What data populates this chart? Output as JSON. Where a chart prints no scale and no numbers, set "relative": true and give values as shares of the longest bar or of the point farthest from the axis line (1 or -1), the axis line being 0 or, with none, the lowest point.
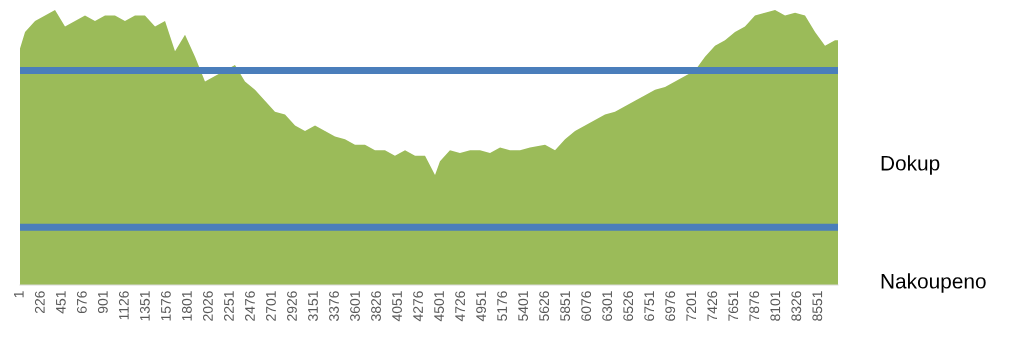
{
  "chart_data": {
    "type": "area",
    "relative": true,
    "color": "#9bbb59",
    "x": [
      1,
      55,
      162,
      269,
      376,
      483,
      590,
      697,
      804,
      911,
      1018,
      1125,
      1232,
      1339,
      1447,
      1554,
      1661,
      1768,
      1875,
      1982,
      2089,
      2196,
      2303,
      2410,
      2517,
      2624,
      2731,
      2839,
      2946,
      3053,
      3160,
      3267,
      3374,
      3481,
      3588,
      3695,
      3802,
      3909,
      4016,
      4124,
      4231,
      4338,
      4445,
      4498,
      4605,
      4712,
      4820,
      4927,
      5034,
      5141,
      5248,
      5355,
      5462,
      5623,
      5730,
      5837,
      5944,
      6051,
      6158,
      6265,
      6372,
      6479,
      6586,
      6694,
      6801,
      6908,
      7015,
      7122,
      7229,
      7336,
      7443,
      7550,
      7657,
      7764,
      7871,
      7978,
      8086,
      8193,
      8300,
      8407,
      8514,
      8621,
      8728,
      8760
    ],
    "values": [
      0.86,
      0.92,
      0.96,
      0.98,
      1.0,
      0.94,
      0.96,
      0.98,
      0.96,
      0.98,
      0.98,
      0.96,
      0.98,
      0.98,
      0.94,
      0.96,
      0.85,
      0.91,
      0.83,
      0.74,
      0.76,
      0.78,
      0.8,
      0.74,
      0.71,
      0.67,
      0.63,
      0.62,
      0.58,
      0.56,
      0.58,
      0.56,
      0.54,
      0.53,
      0.51,
      0.51,
      0.49,
      0.49,
      0.47,
      0.49,
      0.47,
      0.47,
      0.4,
      0.45,
      0.49,
      0.48,
      0.49,
      0.49,
      0.48,
      0.5,
      0.49,
      0.49,
      0.5,
      0.51,
      0.49,
      0.53,
      0.56,
      0.58,
      0.6,
      0.62,
      0.63,
      0.65,
      0.67,
      0.69,
      0.71,
      0.72,
      0.74,
      0.76,
      0.78,
      0.83,
      0.87,
      0.89,
      0.92,
      0.94,
      0.98,
      0.99,
      1.0,
      0.98,
      0.99,
      0.98,
      0.92,
      0.87,
      0.89,
      0.89
    ],
    "xlim": [
      1,
      8760
    ],
    "xticks": [
      1,
      226,
      451,
      676,
      901,
      1126,
      1351,
      1576,
      1801,
      2026,
      2251,
      2476,
      2701,
      2926,
      3151,
      3376,
      3601,
      3826,
      4051,
      4276,
      4501,
      4726,
      4951,
      5176,
      5401,
      5626,
      5851,
      6076,
      6301,
      6526,
      6751,
      6976,
      7201,
      7426,
      7651,
      7876,
      8101,
      8326,
      8551
    ],
    "ref_lines": [
      {
        "axis": "y",
        "value": 0.78,
        "color": "#4a7ebb"
      },
      {
        "axis": "y",
        "value": 0.21,
        "color": "#4a7ebb"
      }
    ],
    "annotations": [
      "Dokup",
      "Nakoupeno"
    ]
  }
}
